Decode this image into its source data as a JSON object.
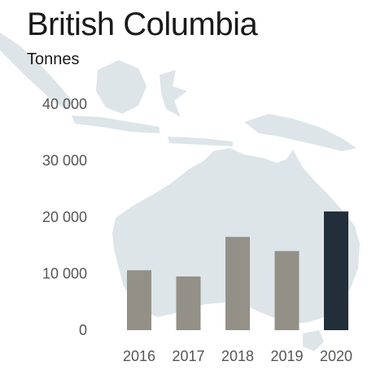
{
  "chart_data": {
    "type": "bar",
    "title": "British Columbia",
    "ylabel": "Tonnes",
    "categories": [
      "2016",
      "2017",
      "2018",
      "2019",
      "2020"
    ],
    "values": [
      10600,
      9500,
      16500,
      14000,
      21000
    ],
    "ylim": [
      0,
      40000
    ],
    "yticks": [
      "0",
      "10 000",
      "20 000",
      "30 000",
      "40 000"
    ],
    "grid": false,
    "highlight_index": 4,
    "colors": {
      "bar": "#939187",
      "highlight": "#222f3a",
      "background_map": "#dde5e8"
    }
  }
}
